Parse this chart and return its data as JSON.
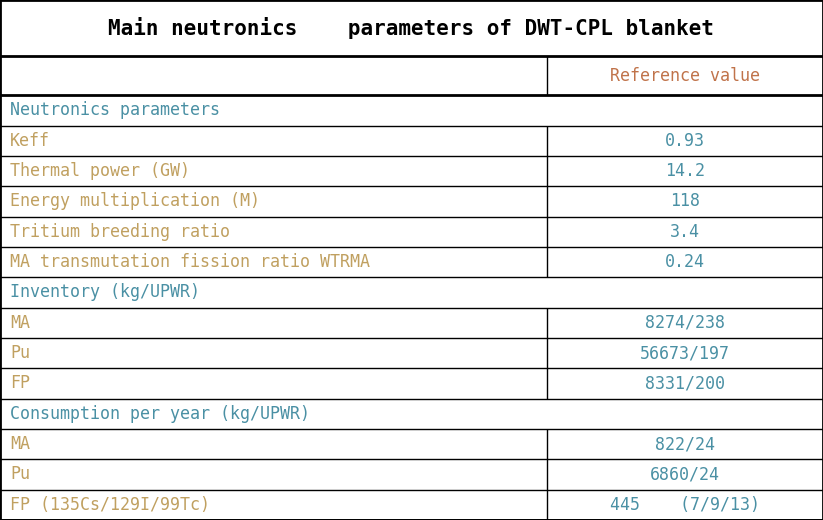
{
  "title": "Main neutronics    parameters of DWT-CPL blanket",
  "col_header": [
    "",
    "Reference value"
  ],
  "rows": [
    {
      "label": "Neutronics parameters",
      "value": "",
      "type": "section"
    },
    {
      "label": "Keff",
      "value": "0.93",
      "type": "data"
    },
    {
      "label": "Thermal power (GW)",
      "value": "14.2",
      "type": "data"
    },
    {
      "label": "Energy multiplication (M)",
      "value": "118",
      "type": "data"
    },
    {
      "label": "Tritium breeding ratio",
      "value": "3.4",
      "type": "data"
    },
    {
      "label": "MA transmutation fission ratio WTRMA",
      "value": "0.24",
      "type": "data"
    },
    {
      "label": "Inventory (kg/UPWR)",
      "value": "",
      "type": "section"
    },
    {
      "label": "MA",
      "value": "8274/238",
      "type": "data"
    },
    {
      "label": "Pu",
      "value": "56673/197",
      "type": "data"
    },
    {
      "label": "FP",
      "value": "8331/200",
      "type": "data"
    },
    {
      "label": "Consumption per year (kg/UPWR)",
      "value": "",
      "type": "section"
    },
    {
      "label": "MA",
      "value": "822/24",
      "type": "data"
    },
    {
      "label": "Pu",
      "value": "6860/24",
      "type": "data"
    },
    {
      "label": "FP (135Cs/129I/99Tc)",
      "value": "445    (7/9/13)",
      "type": "data"
    }
  ],
  "title_color": "#000000",
  "section_color": "#4a90a4",
  "data_label_color": "#c0a060",
  "data_value_color": "#4a90a4",
  "header_value_color": "#c0734a",
  "border_color": "#000000",
  "bg_color": "#ffffff",
  "title_fontsize": 15,
  "header_fontsize": 12,
  "section_fontsize": 12,
  "data_fontsize": 12,
  "col_split": 0.665,
  "outer_border_lw": 2.0,
  "inner_border_lw": 1.0
}
